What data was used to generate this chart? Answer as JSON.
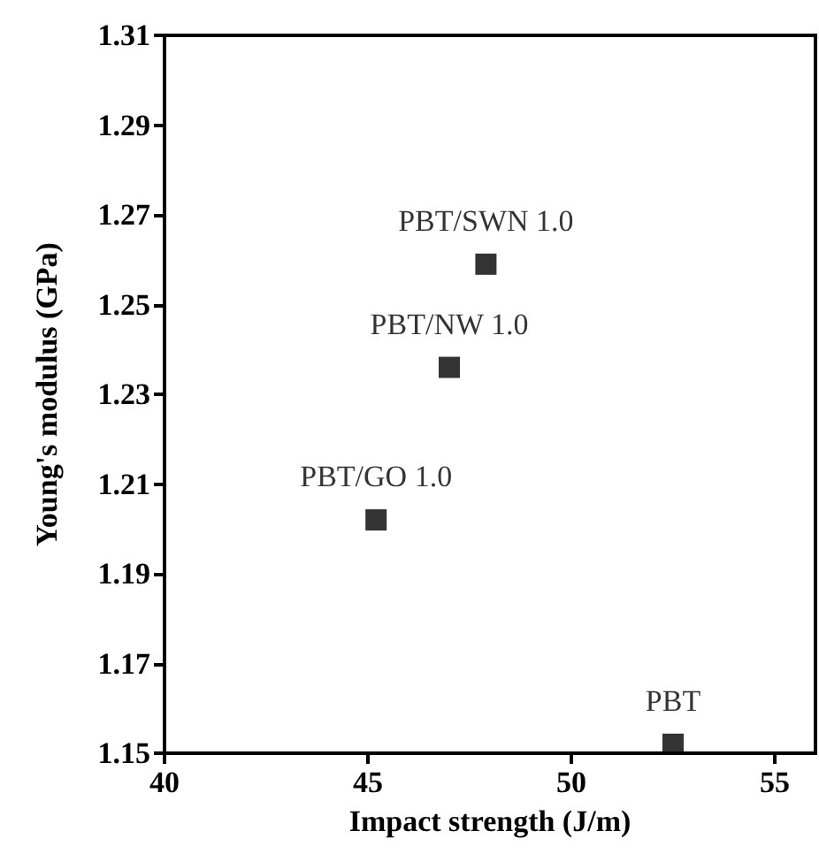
{
  "chart_data": {
    "type": "scatter",
    "xlabel": "Impact strength (J/m)",
    "ylabel": "Young's modulus (GPa)",
    "xlim": [
      40,
      56
    ],
    "xticks": [
      40,
      45,
      50,
      55
    ],
    "ylim": [
      1.15,
      1.31
    ],
    "yticks": [
      1.15,
      1.17,
      1.19,
      1.21,
      1.23,
      1.25,
      1.27,
      1.29,
      1.31
    ],
    "grid": false,
    "legend": false,
    "marker": "square",
    "series": [
      {
        "name": "PBT/SWN 1.0",
        "color": "#000000",
        "x": [
          47.9
        ],
        "values": [
          1.259
        ]
      },
      {
        "name": "PBT/NW 1.0",
        "color": "#000000",
        "x": [
          47.0
        ],
        "values": [
          1.236
        ]
      },
      {
        "name": "PBT/GO 1.0",
        "color": "#000000",
        "x": [
          45.2
        ],
        "values": [
          1.202
        ]
      },
      {
        "name": "PBT",
        "color": "#000000",
        "x": [
          52.5
        ],
        "values": [
          1.152
        ]
      }
    ]
  }
}
